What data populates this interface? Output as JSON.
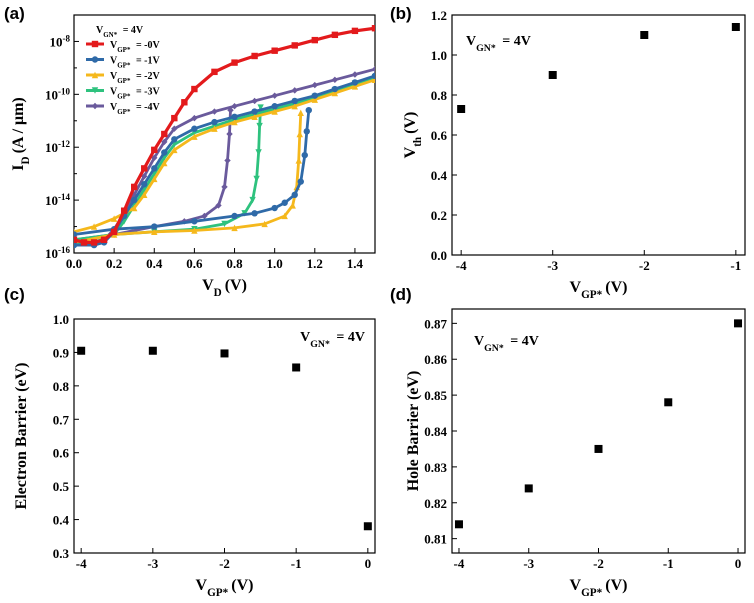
{
  "chart_data": [
    {
      "id": "a",
      "panel_label": "(a)",
      "type": "line",
      "yscale": "log",
      "xlabel": "V",
      "xlabel_sub": "D",
      "xlabel_unit": "(V)",
      "ylabel": "I",
      "ylabel_sub": "D",
      "ylabel_unit": "(A / μm)",
      "xlim": [
        0,
        1.5
      ],
      "ylim_exp": [
        -16,
        -7
      ],
      "xticks": [
        "0.0",
        "0.2",
        "0.4",
        "0.6",
        "0.8",
        "1.0",
        "1.2",
        "1.4"
      ],
      "xtick_values": [
        0,
        0.2,
        0.4,
        0.6,
        0.8,
        1.0,
        1.2,
        1.4
      ],
      "yticks": [
        {
          "exp": -16,
          "base": "10",
          "sup": "-16"
        },
        {
          "exp": -14,
          "base": "10",
          "sup": "-14"
        },
        {
          "exp": -12,
          "base": "10",
          "sup": "-12"
        },
        {
          "exp": -10,
          "base": "10",
          "sup": "-10"
        },
        {
          "exp": -8,
          "base": "10",
          "sup": "-8"
        }
      ],
      "legend_title": {
        "base": "V",
        "sub": "GN*",
        "rest": " = 4V"
      },
      "series": [
        {
          "name": "-0V",
          "label_base": "V",
          "label_sub": "GP*",
          "label_rest": " = -0V",
          "color": "#e31a1c",
          "marker": "square",
          "forward": [
            [
              0.0,
              -15.5
            ],
            [
              0.05,
              -15.6
            ],
            [
              0.1,
              -15.6
            ],
            [
              0.15,
              -15.5
            ],
            [
              0.2,
              -15.2
            ],
            [
              0.25,
              -14.4
            ],
            [
              0.3,
              -13.5
            ],
            [
              0.35,
              -12.8
            ],
            [
              0.4,
              -12.1
            ],
            [
              0.45,
              -11.5
            ],
            [
              0.5,
              -10.9
            ],
            [
              0.55,
              -10.3
            ],
            [
              0.6,
              -9.8
            ],
            [
              0.7,
              -9.15
            ],
            [
              0.8,
              -8.8
            ],
            [
              0.9,
              -8.55
            ],
            [
              1.0,
              -8.35
            ],
            [
              1.1,
              -8.15
            ],
            [
              1.2,
              -7.95
            ],
            [
              1.3,
              -7.75
            ],
            [
              1.4,
              -7.6
            ],
            [
              1.5,
              -7.5
            ]
          ],
          "reverse": []
        },
        {
          "name": "-1V",
          "label_base": "V",
          "label_sub": "GP*",
          "label_rest": " = -1V",
          "color": "#2f6aa8",
          "marker": "circle",
          "forward": [
            [
              0.0,
              -15.7
            ],
            [
              0.1,
              -15.7
            ],
            [
              0.15,
              -15.6
            ],
            [
              0.2,
              -15.2
            ],
            [
              0.25,
              -14.6
            ],
            [
              0.3,
              -14.0
            ],
            [
              0.35,
              -13.4
            ],
            [
              0.4,
              -12.8
            ],
            [
              0.45,
              -12.2
            ],
            [
              0.5,
              -11.7
            ],
            [
              0.6,
              -11.3
            ],
            [
              0.7,
              -11.05
            ],
            [
              0.8,
              -10.85
            ],
            [
              0.9,
              -10.65
            ],
            [
              1.0,
              -10.45
            ],
            [
              1.1,
              -10.25
            ],
            [
              1.2,
              -10.05
            ],
            [
              1.3,
              -9.8
            ],
            [
              1.4,
              -9.55
            ],
            [
              1.5,
              -9.3
            ]
          ],
          "reverse": [
            [
              0.0,
              -15.3
            ],
            [
              0.2,
              -15.1
            ],
            [
              0.4,
              -15.0
            ],
            [
              0.6,
              -14.8
            ],
            [
              0.8,
              -14.6
            ],
            [
              0.9,
              -14.5
            ],
            [
              1.0,
              -14.3
            ],
            [
              1.05,
              -14.1
            ],
            [
              1.1,
              -13.8
            ],
            [
              1.13,
              -13.3
            ],
            [
              1.15,
              -12.3
            ],
            [
              1.16,
              -11.4
            ],
            [
              1.17,
              -10.6
            ]
          ]
        },
        {
          "name": "-2V",
          "label_base": "V",
          "label_sub": "GP*",
          "label_rest": " = -2V",
          "color": "#f5b81c",
          "marker": "triangle",
          "forward": [
            [
              0.0,
              -15.2
            ],
            [
              0.1,
              -15.0
            ],
            [
              0.2,
              -14.7
            ],
            [
              0.3,
              -14.3
            ],
            [
              0.35,
              -13.8
            ],
            [
              0.4,
              -13.2
            ],
            [
              0.45,
              -12.6
            ],
            [
              0.5,
              -12.1
            ],
            [
              0.6,
              -11.6
            ],
            [
              0.7,
              -11.3
            ],
            [
              0.8,
              -11.05
            ],
            [
              0.9,
              -10.85
            ],
            [
              1.0,
              -10.65
            ],
            [
              1.1,
              -10.45
            ],
            [
              1.2,
              -10.2
            ],
            [
              1.3,
              -9.95
            ],
            [
              1.4,
              -9.7
            ],
            [
              1.5,
              -9.45
            ]
          ],
          "reverse": [
            [
              0.0,
              -15.6
            ],
            [
              0.2,
              -15.3
            ],
            [
              0.4,
              -15.2
            ],
            [
              0.6,
              -15.15
            ],
            [
              0.8,
              -15.05
            ],
            [
              0.95,
              -14.9
            ],
            [
              1.05,
              -14.6
            ],
            [
              1.09,
              -14.2
            ],
            [
              1.11,
              -13.5
            ],
            [
              1.12,
              -12.5
            ],
            [
              1.125,
              -11.5
            ],
            [
              1.13,
              -10.7
            ]
          ]
        },
        {
          "name": "-3V",
          "label_base": "V",
          "label_sub": "GP*",
          "label_rest": " = -3V",
          "color": "#2ec27e",
          "marker": "down-triangle",
          "forward": [
            [
              0.0,
              -15.6
            ],
            [
              0.1,
              -15.6
            ],
            [
              0.2,
              -15.3
            ],
            [
              0.25,
              -14.8
            ],
            [
              0.3,
              -14.2
            ],
            [
              0.35,
              -13.6
            ],
            [
              0.4,
              -13.0
            ],
            [
              0.45,
              -12.4
            ],
            [
              0.5,
              -11.9
            ],
            [
              0.6,
              -11.45
            ],
            [
              0.7,
              -11.2
            ],
            [
              0.8,
              -10.95
            ],
            [
              0.9,
              -10.75
            ],
            [
              1.0,
              -10.55
            ],
            [
              1.1,
              -10.35
            ],
            [
              1.2,
              -10.1
            ],
            [
              1.3,
              -9.85
            ],
            [
              1.4,
              -9.6
            ],
            [
              1.5,
              -9.35
            ]
          ],
          "reverse": [
            [
              0.0,
              -15.5
            ],
            [
              0.2,
              -15.3
            ],
            [
              0.4,
              -15.2
            ],
            [
              0.6,
              -15.1
            ],
            [
              0.75,
              -14.9
            ],
            [
              0.85,
              -14.5
            ],
            [
              0.89,
              -14.0
            ],
            [
              0.91,
              -13.2
            ],
            [
              0.92,
              -12.2
            ],
            [
              0.925,
              -11.2
            ],
            [
              0.93,
              -10.5
            ]
          ]
        },
        {
          "name": "-4V",
          "label_base": "V",
          "label_sub": "GP*",
          "label_rest": " = -4V",
          "color": "#6a5a9c",
          "marker": "diamond",
          "forward": [
            [
              0.0,
              -15.7
            ],
            [
              0.1,
              -15.65
            ],
            [
              0.15,
              -15.5
            ],
            [
              0.2,
              -15.1
            ],
            [
              0.25,
              -14.5
            ],
            [
              0.3,
              -13.8
            ],
            [
              0.35,
              -13.1
            ],
            [
              0.4,
              -12.4
            ],
            [
              0.45,
              -11.8
            ],
            [
              0.5,
              -11.3
            ],
            [
              0.6,
              -10.9
            ],
            [
              0.7,
              -10.65
            ],
            [
              0.8,
              -10.45
            ],
            [
              0.9,
              -10.25
            ],
            [
              1.0,
              -10.05
            ],
            [
              1.1,
              -9.85
            ],
            [
              1.2,
              -9.65
            ],
            [
              1.3,
              -9.45
            ],
            [
              1.4,
              -9.25
            ],
            [
              1.5,
              -9.05
            ]
          ],
          "reverse": [
            [
              0.0,
              -15.5
            ],
            [
              0.2,
              -15.3
            ],
            [
              0.4,
              -15.0
            ],
            [
              0.55,
              -14.8
            ],
            [
              0.65,
              -14.6
            ],
            [
              0.72,
              -14.2
            ],
            [
              0.75,
              -13.5
            ],
            [
              0.765,
              -12.5
            ],
            [
              0.775,
              -11.5
            ],
            [
              0.78,
              -10.6
            ]
          ]
        }
      ]
    },
    {
      "id": "b",
      "panel_label": "(b)",
      "type": "scatter",
      "xlabel": "V",
      "xlabel_sub": "GP*",
      "xlabel_unit": "(V)",
      "ylabel": "V",
      "ylabel_sub": "th",
      "ylabel_unit": "(V)",
      "annotation": {
        "base": "V",
        "sub": "GN*",
        "rest": " = 4V"
      },
      "xlim": [
        -4.1,
        -0.9
      ],
      "ylim": [
        0.0,
        1.2
      ],
      "xticks": [
        "-4",
        "-3",
        "-2",
        "-1"
      ],
      "xtick_values": [
        -4,
        -3,
        -2,
        -1
      ],
      "yticks": [
        "0.0",
        "0.2",
        "0.4",
        "0.6",
        "0.8",
        "1.0",
        "1.2"
      ],
      "ytick_values": [
        0.0,
        0.2,
        0.4,
        0.6,
        0.8,
        1.0,
        1.2
      ],
      "x": [
        -4,
        -3,
        -2,
        -1
      ],
      "y": [
        0.73,
        0.9,
        1.1,
        1.14
      ]
    },
    {
      "id": "c",
      "panel_label": "(c)",
      "type": "scatter",
      "xlabel": "V",
      "xlabel_sub": "GP*",
      "xlabel_unit": "(V)",
      "ylabel": "Electron Barrier (eV)",
      "annotation": {
        "base": "V",
        "sub": "GN*",
        "rest": " = 4V"
      },
      "xlim": [
        -4.1,
        0.1
      ],
      "ylim": [
        0.3,
        1.0
      ],
      "xticks": [
        "-4",
        "-3",
        "-2",
        "-1",
        "0"
      ],
      "xtick_values": [
        -4,
        -3,
        -2,
        -1,
        0
      ],
      "yticks": [
        "0.3",
        "0.4",
        "0.5",
        "0.6",
        "0.7",
        "0.8",
        "0.9",
        "1.0"
      ],
      "ytick_values": [
        0.3,
        0.4,
        0.5,
        0.6,
        0.7,
        0.8,
        0.9,
        1.0
      ],
      "x": [
        -4,
        -3,
        -2,
        -1,
        0
      ],
      "y": [
        0.905,
        0.905,
        0.897,
        0.855,
        0.38
      ]
    },
    {
      "id": "d",
      "panel_label": "(d)",
      "type": "scatter",
      "xlabel": "V",
      "xlabel_sub": "GP*",
      "xlabel_unit": "(V)",
      "ylabel": "Hole Barrier (eV)",
      "annotation": {
        "base": "V",
        "sub": "GN*",
        "rest": " = 4V"
      },
      "xlim": [
        -4.1,
        0.1
      ],
      "ylim": [
        0.806,
        0.874
      ],
      "xticks": [
        "-4",
        "-3",
        "-2",
        "-1",
        "0"
      ],
      "xtick_values": [
        -4,
        -3,
        -2,
        -1,
        0
      ],
      "yticks": [
        "0.81",
        "0.82",
        "0.83",
        "0.84",
        "0.85",
        "0.86",
        "0.87"
      ],
      "ytick_values": [
        0.81,
        0.82,
        0.83,
        0.84,
        0.85,
        0.86,
        0.87
      ],
      "x": [
        -4,
        -3,
        -2,
        -1,
        0
      ],
      "y": [
        0.814,
        0.824,
        0.835,
        0.848,
        0.87
      ]
    }
  ]
}
